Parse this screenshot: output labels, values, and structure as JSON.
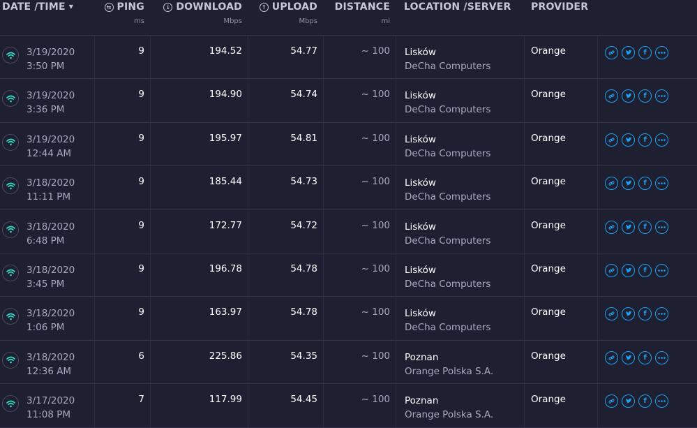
{
  "columns": {
    "date": {
      "label": "DATE /TIME",
      "caret": "▼"
    },
    "ping": {
      "label": "PING",
      "unit": "ms",
      "icon": "ping-icon"
    },
    "download": {
      "label": "DOWNLOAD",
      "unit": "Mbps",
      "icon": "download-icon"
    },
    "upload": {
      "label": "UPLOAD",
      "unit": "Mbps",
      "icon": "upload-icon"
    },
    "distance": {
      "label": "DISTANCE",
      "unit": "mi"
    },
    "location": {
      "label": "LOCATION /SERVER"
    },
    "provider": {
      "label": "PROVIDER"
    }
  },
  "colors": {
    "background": "#1f1f32",
    "accent": "#1da1f2",
    "wifi": "#2fe0c8"
  },
  "actions": [
    "link-icon",
    "twitter-icon",
    "facebook-icon",
    "more-icon"
  ],
  "rows": [
    {
      "date": "3/19/2020",
      "time": "3:50 PM",
      "ping": "9",
      "download": "194.52",
      "upload": "54.77",
      "distance": "~ 100",
      "city": "Lisków",
      "server": "DeCha Computers",
      "provider": "Orange"
    },
    {
      "date": "3/19/2020",
      "time": "3:36 PM",
      "ping": "9",
      "download": "194.90",
      "upload": "54.74",
      "distance": "~ 100",
      "city": "Lisków",
      "server": "DeCha Computers",
      "provider": "Orange"
    },
    {
      "date": "3/19/2020",
      "time": "12:44 AM",
      "ping": "9",
      "download": "195.97",
      "upload": "54.81",
      "distance": "~ 100",
      "city": "Lisków",
      "server": "DeCha Computers",
      "provider": "Orange"
    },
    {
      "date": "3/18/2020",
      "time": "11:11 PM",
      "ping": "9",
      "download": "185.44",
      "upload": "54.73",
      "distance": "~ 100",
      "city": "Lisków",
      "server": "DeCha Computers",
      "provider": "Orange"
    },
    {
      "date": "3/18/2020",
      "time": "6:48 PM",
      "ping": "9",
      "download": "172.77",
      "upload": "54.72",
      "distance": "~ 100",
      "city": "Lisków",
      "server": "DeCha Computers",
      "provider": "Orange"
    },
    {
      "date": "3/18/2020",
      "time": "3:45 PM",
      "ping": "9",
      "download": "196.78",
      "upload": "54.78",
      "distance": "~ 100",
      "city": "Lisków",
      "server": "DeCha Computers",
      "provider": "Orange"
    },
    {
      "date": "3/18/2020",
      "time": "1:06 PM",
      "ping": "9",
      "download": "163.97",
      "upload": "54.78",
      "distance": "~ 100",
      "city": "Lisków",
      "server": "DeCha Computers",
      "provider": "Orange"
    },
    {
      "date": "3/18/2020",
      "time": "12:36 AM",
      "ping": "6",
      "download": "225.86",
      "upload": "54.35",
      "distance": "~ 100",
      "city": "Poznan",
      "server": "Orange Polska S.A.",
      "provider": "Orange"
    },
    {
      "date": "3/17/2020",
      "time": "11:08 PM",
      "ping": "7",
      "download": "117.99",
      "upload": "54.45",
      "distance": "~ 100",
      "city": "Poznan",
      "server": "Orange Polska S.A.",
      "provider": "Orange"
    }
  ]
}
